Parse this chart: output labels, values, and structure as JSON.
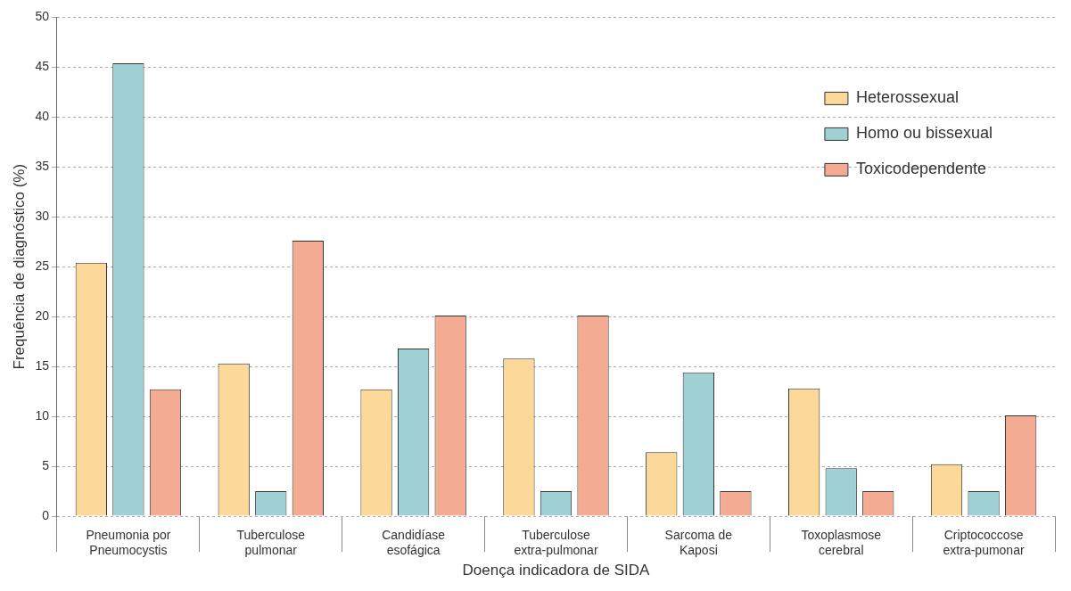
{
  "chart_data": {
    "type": "bar",
    "xlabel": "Doença indicadora de SIDA",
    "ylabel": "Frequência de diagnóstico (%)",
    "categories": [
      "Pneumonia por\nPneumocystis",
      "Tuberculose\npulmonar",
      "Candidíase\nesofágica",
      "Tuberculose\nextra-pulmonar",
      "Sarcoma de\nKaposi",
      "Toxoplasmose\ncerebral",
      "Criptococcose\nextra-pumonar"
    ],
    "series": [
      {
        "name": "Heterossexual",
        "color": "#fcd899",
        "values": [
          25.4,
          15.3,
          12.7,
          15.8,
          6.4,
          12.8,
          5.2
        ]
      },
      {
        "name": "Homo ou bissexual",
        "color": "#9fd1d4",
        "values": [
          45.4,
          2.5,
          16.8,
          2.5,
          14.4,
          4.8,
          2.5
        ]
      },
      {
        "name": "Toxicodependente",
        "color": "#f4ab94",
        "values": [
          12.7,
          27.6,
          20.1,
          20.1,
          2.5,
          2.5,
          10.1
        ]
      }
    ],
    "ylim": [
      0,
      50
    ],
    "yticks": [
      0,
      5,
      10,
      15,
      20,
      25,
      30,
      35,
      40,
      45,
      50
    ],
    "grid": "y",
    "legend": "top right"
  }
}
